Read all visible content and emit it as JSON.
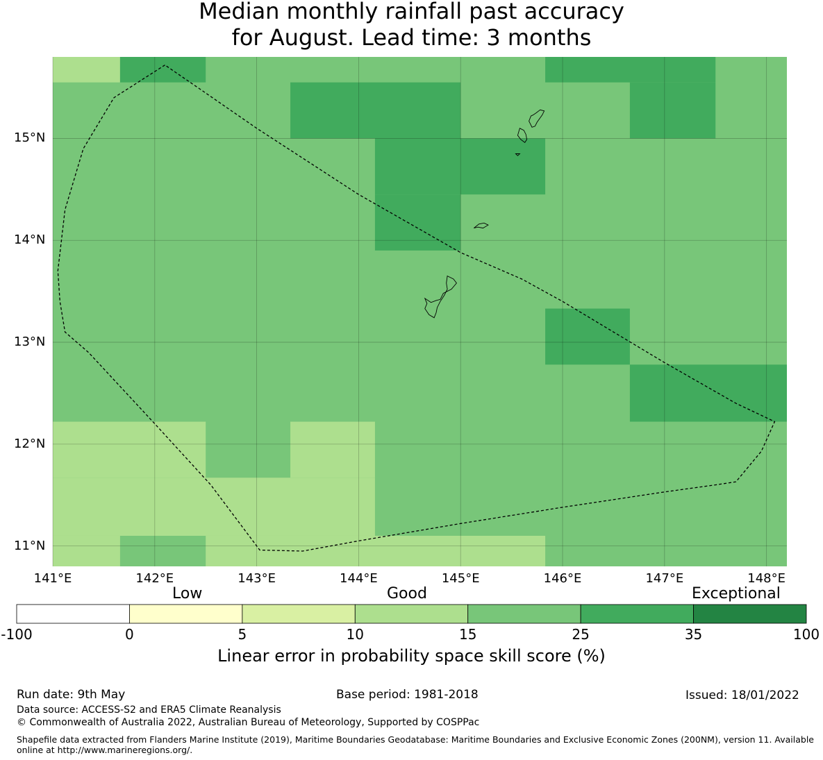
{
  "title": {
    "line1": "Median monthly rainfall past accuracy",
    "line2": "for August. Lead time: 3 months"
  },
  "map": {
    "lon_range": [
      141.0,
      148.2
    ],
    "lat_range": [
      10.8,
      15.8
    ],
    "lon_ticks": [
      {
        "value": 141,
        "label": "141°E"
      },
      {
        "value": 142,
        "label": "142°E"
      },
      {
        "value": 143,
        "label": "143°E"
      },
      {
        "value": 144,
        "label": "144°E"
      },
      {
        "value": 145,
        "label": "145°E"
      },
      {
        "value": 146,
        "label": "146°E"
      },
      {
        "value": 147,
        "label": "147°E"
      },
      {
        "value": 148,
        "label": "148°E"
      }
    ],
    "lat_ticks": [
      {
        "value": 15,
        "label": "15°N"
      },
      {
        "value": 14,
        "label": "14°N"
      },
      {
        "value": 13,
        "label": "13°N"
      },
      {
        "value": 12,
        "label": "12°N"
      },
      {
        "value": 11,
        "label": "11°N"
      }
    ],
    "grid": true,
    "colors": {
      "c10_15": "#addf8e",
      "c15_25": "#78c679",
      "c25_35": "#41ab5d"
    },
    "cells": [
      {
        "lon": [
          141.0,
          141.66
        ],
        "lat": [
          15.55,
          15.8
        ],
        "c": "c10_15"
      },
      {
        "lon": [
          141.66,
          142.5
        ],
        "lat": [
          15.55,
          15.8
        ],
        "c": "c25_35"
      },
      {
        "lon": [
          145.83,
          147.5
        ],
        "lat": [
          15.55,
          15.8
        ],
        "c": "c25_35"
      },
      {
        "lon": [
          143.33,
          145.0
        ],
        "lat": [
          15.0,
          15.55
        ],
        "c": "c25_35"
      },
      {
        "lon": [
          146.66,
          147.5
        ],
        "lat": [
          15.0,
          15.55
        ],
        "c": "c25_35"
      },
      {
        "lon": [
          144.16,
          145.83
        ],
        "lat": [
          14.45,
          15.0
        ],
        "c": "c25_35"
      },
      {
        "lon": [
          144.16,
          145.0
        ],
        "lat": [
          13.9,
          14.45
        ],
        "c": "c25_35"
      },
      {
        "lon": [
          145.83,
          146.66
        ],
        "lat": [
          12.78,
          13.33
        ],
        "c": "c25_35"
      },
      {
        "lon": [
          146.66,
          148.2
        ],
        "lat": [
          12.22,
          12.78
        ],
        "c": "c25_35"
      },
      {
        "lon": [
          141.0,
          142.5
        ],
        "lat": [
          11.67,
          12.22
        ],
        "c": "c10_15"
      },
      {
        "lon": [
          143.33,
          144.16
        ],
        "lat": [
          11.67,
          12.22
        ],
        "c": "c10_15"
      },
      {
        "lon": [
          141.0,
          144.16
        ],
        "lat": [
          11.1,
          11.67
        ],
        "c": "c10_15"
      },
      {
        "lon": [
          141.0,
          141.66
        ],
        "lat": [
          10.8,
          11.1
        ],
        "c": "c10_15"
      },
      {
        "lon": [
          142.5,
          145.83
        ],
        "lat": [
          10.8,
          11.1
        ],
        "c": "c10_15"
      }
    ],
    "boundary": [
      [
        142.1,
        15.72
      ],
      [
        141.6,
        15.4
      ],
      [
        141.3,
        14.9
      ],
      [
        141.12,
        14.3
      ],
      [
        141.05,
        13.7
      ],
      [
        141.07,
        13.4
      ],
      [
        141.12,
        13.1
      ],
      [
        141.35,
        12.9
      ],
      [
        142.0,
        12.2
      ],
      [
        142.55,
        11.6
      ],
      [
        143.03,
        10.96
      ],
      [
        143.45,
        10.95
      ],
      [
        144.0,
        11.05
      ],
      [
        145.0,
        11.22
      ],
      [
        146.0,
        11.38
      ],
      [
        147.0,
        11.53
      ],
      [
        147.5,
        11.6
      ],
      [
        147.7,
        11.63
      ],
      [
        147.95,
        11.93
      ],
      [
        148.08,
        12.22
      ],
      [
        147.7,
        12.4
      ],
      [
        147.0,
        12.8
      ],
      [
        146.5,
        13.1
      ],
      [
        146.0,
        13.4
      ],
      [
        145.6,
        13.62
      ],
      [
        145.0,
        13.88
      ],
      [
        144.0,
        14.45
      ],
      [
        143.0,
        15.1
      ],
      [
        142.45,
        15.48
      ],
      [
        142.1,
        15.72
      ]
    ],
    "islands": [
      [
        [
          145.78,
          15.28
        ],
        [
          145.74,
          15.25
        ],
        [
          145.71,
          15.23
        ],
        [
          145.69,
          15.22
        ],
        [
          145.67,
          15.17
        ],
        [
          145.7,
          15.11
        ],
        [
          145.73,
          15.12
        ],
        [
          145.75,
          15.16
        ],
        [
          145.8,
          15.23
        ],
        [
          145.82,
          15.27
        ],
        [
          145.78,
          15.28
        ]
      ],
      [
        [
          145.58,
          15.1
        ],
        [
          145.62,
          15.08
        ],
        [
          145.64,
          15.04
        ],
        [
          145.65,
          14.99
        ],
        [
          145.63,
          14.96
        ],
        [
          145.59,
          14.99
        ],
        [
          145.56,
          15.03
        ],
        [
          145.58,
          15.1
        ]
      ],
      [
        [
          145.54,
          14.85
        ],
        [
          145.58,
          14.85
        ],
        [
          145.56,
          14.83
        ],
        [
          145.54,
          14.85
        ]
      ],
      [
        [
          145.13,
          14.12
        ],
        [
          145.18,
          14.16
        ],
        [
          145.23,
          14.17
        ],
        [
          145.27,
          14.15
        ],
        [
          145.22,
          14.12
        ],
        [
          145.17,
          14.13
        ],
        [
          145.13,
          14.12
        ]
      ],
      [
        [
          144.87,
          13.65
        ],
        [
          144.93,
          13.62
        ],
        [
          144.96,
          13.58
        ],
        [
          144.91,
          13.52
        ],
        [
          144.83,
          13.48
        ],
        [
          144.8,
          13.42
        ],
        [
          144.76,
          13.41
        ],
        [
          144.71,
          13.39
        ],
        [
          144.65,
          13.43
        ],
        [
          144.67,
          13.38
        ],
        [
          144.65,
          13.33
        ],
        [
          144.69,
          13.27
        ],
        [
          144.74,
          13.24
        ],
        [
          144.76,
          13.29
        ],
        [
          144.77,
          13.34
        ],
        [
          144.8,
          13.4
        ],
        [
          144.84,
          13.46
        ],
        [
          144.87,
          13.52
        ],
        [
          144.86,
          13.58
        ],
        [
          144.87,
          13.65
        ]
      ]
    ]
  },
  "colorbar": {
    "categories": {
      "low": "Low",
      "good": "Good",
      "exceptional": "Exceptional"
    },
    "boundaries": [
      "-100",
      "0",
      "5",
      "10",
      "15",
      "25",
      "35",
      "100"
    ],
    "colors": [
      "#ffffff",
      "#ffffcc",
      "#d9f0a3",
      "#addf8e",
      "#78c679",
      "#41ab5d",
      "#238443"
    ],
    "label": "Linear error in probability space skill score (%)"
  },
  "footer": {
    "run_date": "Run date: 9th May",
    "base_period": "Base period: 1981-2018",
    "issued": "Issued: 18/01/2022",
    "data_source": "Data source: ACCESS-S2 and ERA5 Climate Reanalysis",
    "copyright": "© Commonwealth of Australia 2022, Australian Bureau of Meteorology, Supported by COSPPac",
    "shapefile": "Shapefile data extracted from Flanders Marine Institute (2019), Maritime Boundaries Geodatabase: Maritime Boundaries and Exclusive Economic Zones (200NM), version 11. Available online at http://www.marineregions.org/."
  }
}
